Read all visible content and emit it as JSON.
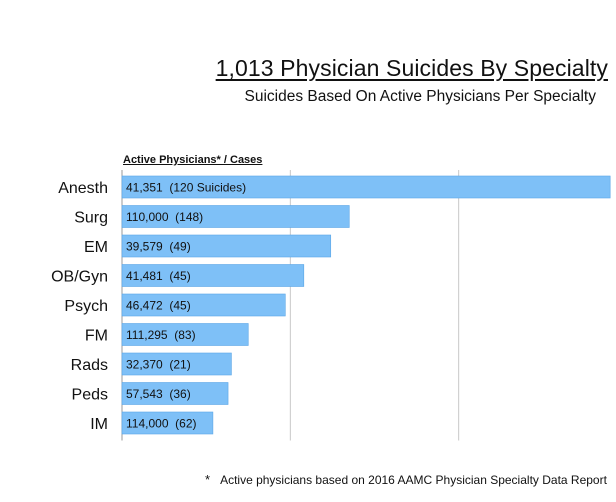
{
  "chart_data": {
    "type": "bar",
    "orientation": "horizontal",
    "title": "1,013 Physician Suicides By Specialty",
    "subtitle": "Suicides Based On Active Physicians Per Specialty",
    "column_header": "Active Physicians* / Cases",
    "categories": [
      "Anesth",
      "Surg",
      "EM",
      "OB/Gyn",
      "Psych",
      "FM",
      "Rads",
      "Peds",
      "IM"
    ],
    "values": [
      29.0,
      13.5,
      12.4,
      10.8,
      9.7,
      7.5,
      6.5,
      6.3,
      5.4
    ],
    "bar_labels": [
      "41,351  (120 Suicides)",
      "110,000  (148)",
      "39,579  (49)",
      "41,481  (45)",
      "46,472  (45)",
      "111,295  (83)",
      "32,370  (21)",
      "57,543  (36)",
      "114,000  (62)"
    ],
    "xlim": [
      0,
      30
    ],
    "grid": "vertical",
    "bar_color": "#7ec0f7",
    "bar_edge_color": "#5aa6e6",
    "footnote_marker": "*",
    "footnote": "Active physicians based on 2016 AAMC Physician Specialty Data Report"
  }
}
